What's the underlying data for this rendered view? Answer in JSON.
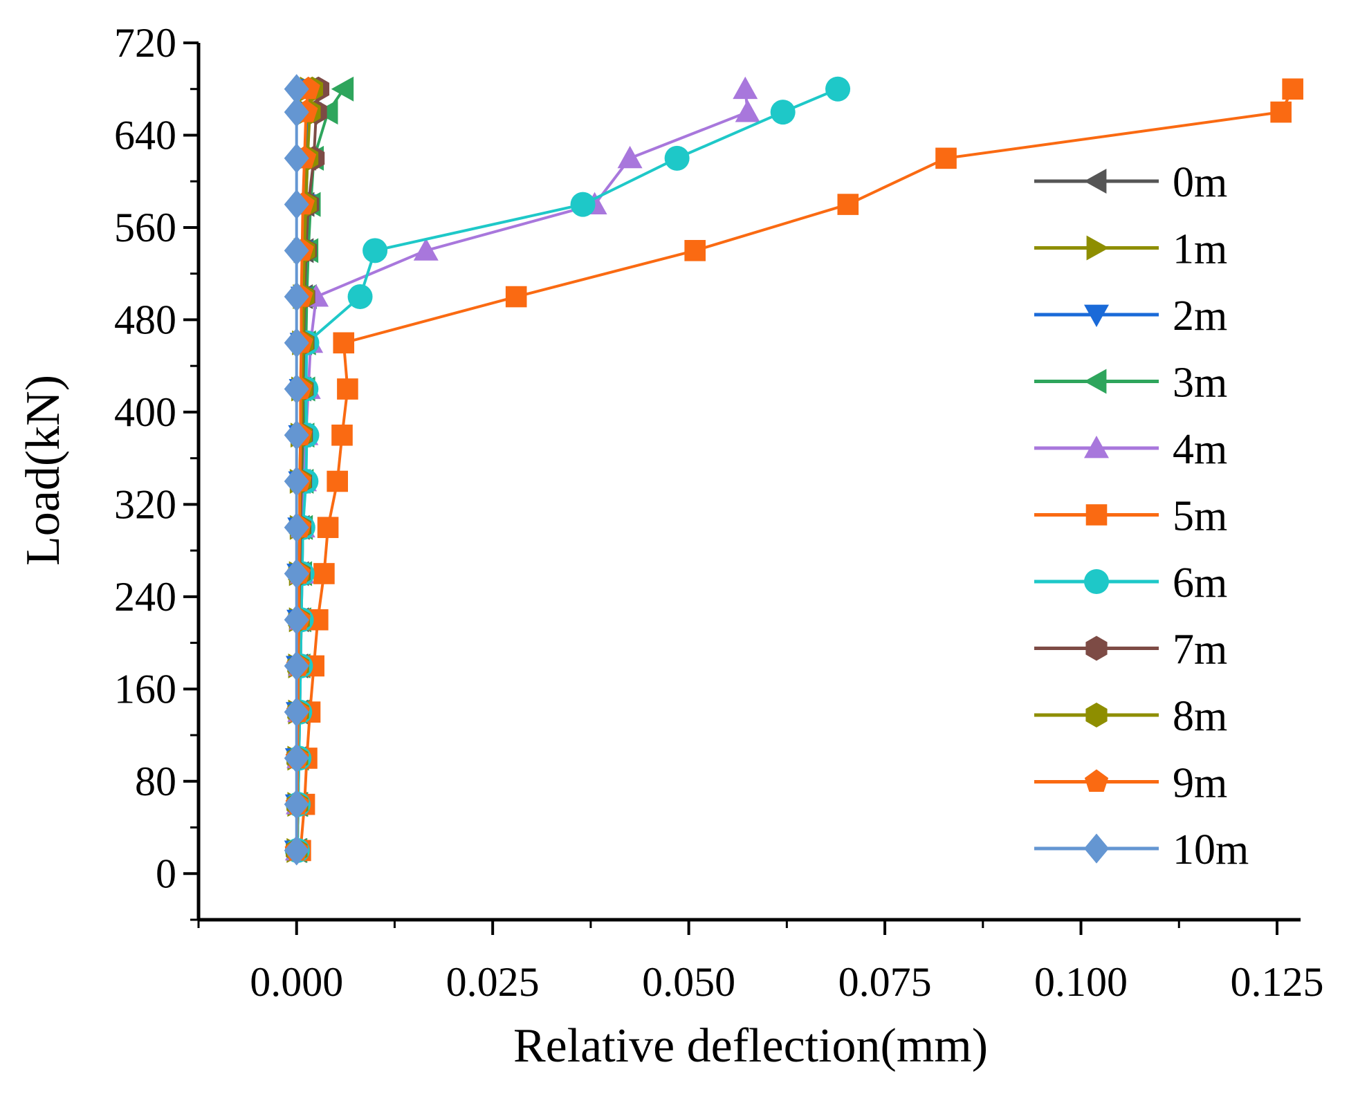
{
  "chart_data": {
    "type": "line",
    "title": "",
    "xlabel": "Relative deflection(mm)",
    "ylabel": "Load(kN)",
    "xlim": [
      -0.0125,
      0.128
    ],
    "ylim": [
      -40,
      720
    ],
    "xticks": [
      0.0,
      0.025,
      0.05,
      0.075,
      0.1,
      0.125
    ],
    "xtick_labels": [
      "0.000",
      "0.025",
      "0.050",
      "0.075",
      "0.100",
      "0.125"
    ],
    "yticks": [
      0,
      80,
      160,
      240,
      320,
      400,
      480,
      560,
      640,
      720
    ],
    "ytick_labels": [
      "0",
      "80",
      "160",
      "240",
      "320",
      "400",
      "480",
      "560",
      "640",
      "720"
    ],
    "grid": false,
    "legend_position": "right",
    "loads": [
      20,
      60,
      100,
      140,
      180,
      220,
      260,
      300,
      340,
      380,
      420,
      460,
      500,
      540,
      580,
      620,
      660,
      680
    ],
    "series": [
      {
        "name": "0m",
        "color": "#555555",
        "marker": "triangle-left",
        "x": [
          0.0,
          0.0001,
          0.0001,
          0.0002,
          0.0002,
          0.0003,
          0.0003,
          0.0004,
          0.0005,
          0.0005,
          0.0006,
          0.0007,
          0.0008,
          0.0009,
          0.001,
          0.0012,
          0.0014,
          0.0015
        ]
      },
      {
        "name": "1m",
        "color": "#8e8e00",
        "marker": "triangle-right",
        "x": [
          0.0,
          0.0001,
          0.0001,
          0.0002,
          0.0002,
          0.0003,
          0.0003,
          0.0004,
          0.0004,
          0.0005,
          0.0006,
          0.0007,
          0.0008,
          0.0009,
          0.0011,
          0.0013,
          0.0015,
          0.0017
        ]
      },
      {
        "name": "2m",
        "color": "#1a6ad8",
        "marker": "triangle-down",
        "x": [
          0.0,
          0.0001,
          0.0001,
          0.0002,
          0.0002,
          0.0003,
          0.0003,
          0.0004,
          0.0005,
          0.0005,
          0.0006,
          0.0007,
          0.0008,
          0.001,
          0.0012,
          0.0014,
          0.0016,
          0.0018
        ]
      },
      {
        "name": "3m",
        "color": "#2ea55c",
        "marker": "triangle-left",
        "x": [
          0.0001,
          0.0002,
          0.0003,
          0.0004,
          0.0005,
          0.0006,
          0.0007,
          0.0008,
          0.0009,
          0.001,
          0.0011,
          0.0012,
          0.0013,
          0.0015,
          0.0018,
          0.0022,
          0.004,
          0.006
        ]
      },
      {
        "name": "4m",
        "color": "#a877dc",
        "marker": "triangle-up",
        "x": [
          0.0001,
          0.0002,
          0.0003,
          0.0004,
          0.0005,
          0.0006,
          0.0007,
          0.0008,
          0.001,
          0.0012,
          0.0015,
          0.0018,
          0.0025,
          0.0165,
          0.038,
          0.0425,
          0.0575,
          0.0572
        ]
      },
      {
        "name": "5m",
        "color": "#fa6a12",
        "marker": "square",
        "x": [
          0.0005,
          0.001,
          0.0013,
          0.0017,
          0.0022,
          0.0027,
          0.0035,
          0.004,
          0.0052,
          0.0058,
          0.0065,
          0.006,
          0.028,
          0.0508,
          0.0703,
          0.0828,
          0.1255,
          0.127
        ]
      },
      {
        "name": "6m",
        "color": "#1ec8c8",
        "marker": "circle",
        "x": [
          0.0001,
          0.0002,
          0.0003,
          0.0004,
          0.0005,
          0.0006,
          0.0007,
          0.0008,
          0.0012,
          0.0013,
          0.0012,
          0.0013,
          0.0081,
          0.01,
          0.0365,
          0.0485,
          0.062,
          0.069
        ]
      },
      {
        "name": "7m",
        "color": "#7d4b45",
        "marker": "hexagon",
        "x": [
          0.0,
          0.0001,
          0.0001,
          0.0002,
          0.0002,
          0.0003,
          0.0004,
          0.0005,
          0.0006,
          0.0007,
          0.0008,
          0.0009,
          0.001,
          0.0012,
          0.0015,
          0.0022,
          0.0025,
          0.0028
        ]
      },
      {
        "name": "8m",
        "color": "#8e8e00",
        "marker": "hexagon",
        "x": [
          0.0,
          0.0001,
          0.0001,
          0.0002,
          0.0002,
          0.0003,
          0.0003,
          0.0004,
          0.0005,
          0.0006,
          0.0007,
          0.0008,
          0.0009,
          0.001,
          0.0012,
          0.0014,
          0.0017,
          0.002
        ]
      },
      {
        "name": "9m",
        "color": "#fa6a12",
        "marker": "pentagon",
        "x": [
          0.0,
          0.0001,
          0.0001,
          0.0002,
          0.0002,
          0.0003,
          0.0003,
          0.0004,
          0.0004,
          0.0005,
          0.0005,
          0.0006,
          0.0006,
          0.0007,
          0.0008,
          0.001,
          0.0012,
          0.0015
        ]
      },
      {
        "name": "10m",
        "color": "#6496d2",
        "marker": "diamond",
        "x": [
          0.0,
          0.0,
          0.0,
          0.0,
          0.0,
          0.0,
          0.0,
          0.0,
          0.0,
          0.0,
          0.0,
          0.0,
          0.0,
          0.0,
          0.0,
          0.0,
          0.0,
          0.0
        ]
      }
    ]
  }
}
